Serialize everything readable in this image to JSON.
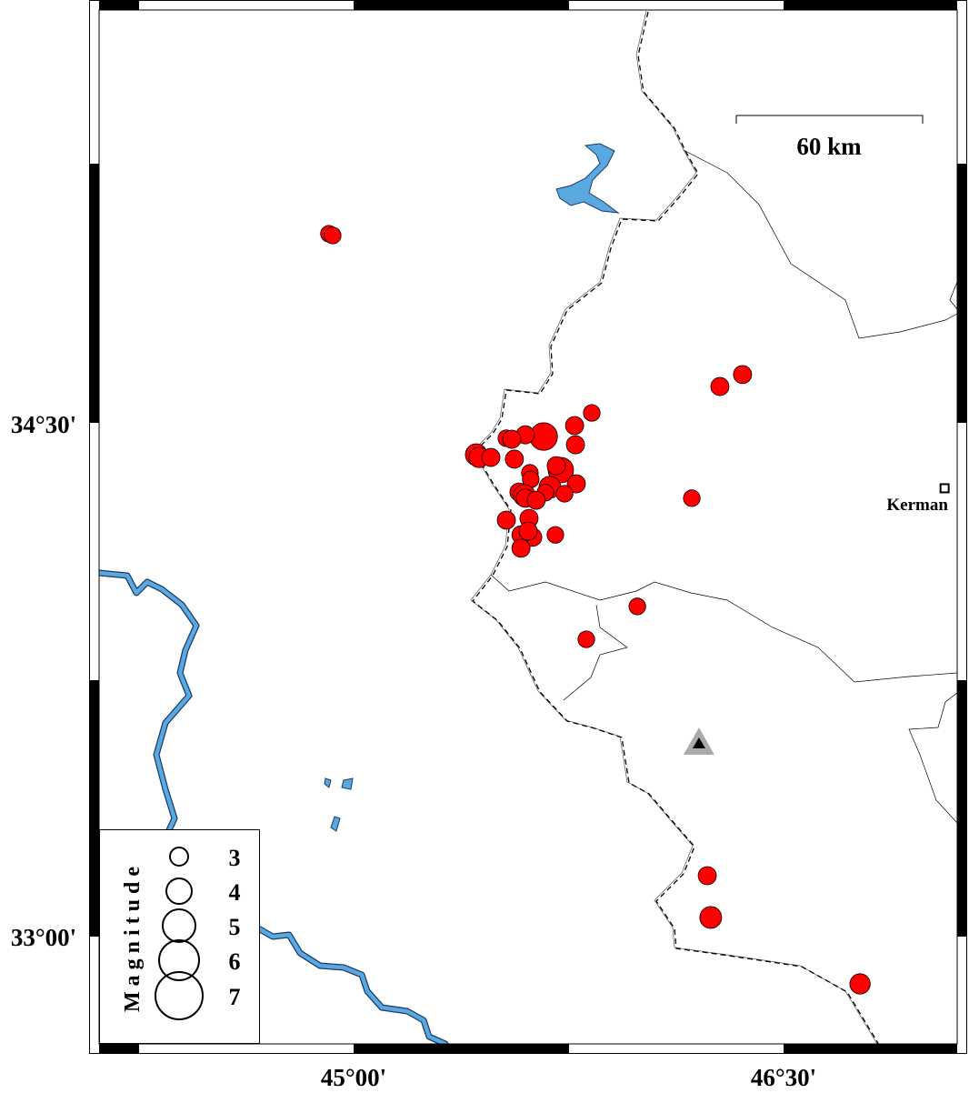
{
  "map": {
    "projection_extent": {
      "lon": [
        44.24,
        47.24
      ],
      "lat": [
        32.78,
        35.8
      ]
    },
    "axes": {
      "x_ticks": [
        {
          "value": 45.0,
          "label": "45°00'"
        },
        {
          "value": 46.5,
          "label": "46°30'"
        }
      ],
      "y_ticks": [
        {
          "value": 34.5,
          "label": "34°30'"
        },
        {
          "value": 33.0,
          "label": "33°00'"
        }
      ]
    },
    "scale_bar": {
      "label": "60 km"
    },
    "city": {
      "name": "Kerman",
      "lon": 47.062,
      "lat": 34.309,
      "icon": "square-city-icon"
    },
    "station": {
      "lon": 46.205,
      "lat": 33.563,
      "icon": "triangle-station-icon"
    },
    "colors": {
      "event": "#ff0000",
      "water": "#5aa8e0",
      "border": "#000000",
      "station_halo": "#aaaaaa"
    },
    "legend": {
      "title": "Magnitude",
      "items": [
        {
          "mag": 3,
          "label": "3"
        },
        {
          "mag": 4,
          "label": "4"
        },
        {
          "mag": 5,
          "label": "5"
        },
        {
          "mag": 6,
          "label": "6"
        },
        {
          "mag": 7,
          "label": "7"
        }
      ]
    },
    "events": [
      {
        "lon": 44.914,
        "lat": 35.052,
        "mag": 2.8
      },
      {
        "lon": 44.927,
        "lat": 35.047,
        "mag": 2.8
      },
      {
        "lon": 46.357,
        "lat": 34.641,
        "mag": 3.0
      },
      {
        "lon": 46.278,
        "lat": 34.606,
        "mag": 3.0
      },
      {
        "lon": 45.831,
        "lat": 34.529,
        "mag": 2.8
      },
      {
        "lon": 45.771,
        "lat": 34.492,
        "mag": 3.0
      },
      {
        "lon": 45.774,
        "lat": 34.436,
        "mag": 3.0
      },
      {
        "lon": 45.663,
        "lat": 34.46,
        "mag": 4.3
      },
      {
        "lon": 45.599,
        "lat": 34.465,
        "mag": 3.0
      },
      {
        "lon": 45.533,
        "lat": 34.455,
        "mag": 2.8
      },
      {
        "lon": 45.552,
        "lat": 34.452,
        "mag": 3.0
      },
      {
        "lon": 45.428,
        "lat": 34.407,
        "mag": 3.5
      },
      {
        "lon": 45.438,
        "lat": 34.399,
        "mag": 3.3
      },
      {
        "lon": 45.479,
        "lat": 34.399,
        "mag": 3.0
      },
      {
        "lon": 45.561,
        "lat": 34.394,
        "mag": 3.0
      },
      {
        "lon": 45.723,
        "lat": 34.362,
        "mag": 4.0
      },
      {
        "lon": 45.707,
        "lat": 34.375,
        "mag": 3.0
      },
      {
        "lon": 45.615,
        "lat": 34.354,
        "mag": 2.8
      },
      {
        "lon": 45.618,
        "lat": 34.335,
        "mag": 2.8
      },
      {
        "lon": 45.777,
        "lat": 34.322,
        "mag": 3.0
      },
      {
        "lon": 45.685,
        "lat": 34.312,
        "mag": 3.5
      },
      {
        "lon": 45.736,
        "lat": 34.293,
        "mag": 2.8
      },
      {
        "lon": 45.577,
        "lat": 34.298,
        "mag": 3.0
      },
      {
        "lon": 45.596,
        "lat": 34.288,
        "mag": 3.5
      },
      {
        "lon": 45.599,
        "lat": 34.28,
        "mag": 3.0
      },
      {
        "lon": 45.669,
        "lat": 34.296,
        "mag": 2.8
      },
      {
        "lon": 45.637,
        "lat": 34.274,
        "mag": 3.0
      },
      {
        "lon": 46.18,
        "lat": 34.28,
        "mag": 2.8
      },
      {
        "lon": 45.533,
        "lat": 34.216,
        "mag": 3.0
      },
      {
        "lon": 45.612,
        "lat": 34.221,
        "mag": 3.0
      },
      {
        "lon": 45.704,
        "lat": 34.173,
        "mag": 2.8
      },
      {
        "lon": 45.625,
        "lat": 34.166,
        "mag": 3.0
      },
      {
        "lon": 45.584,
        "lat": 34.173,
        "mag": 3.0
      },
      {
        "lon": 45.609,
        "lat": 34.184,
        "mag": 3.0
      },
      {
        "lon": 45.584,
        "lat": 34.134,
        "mag": 3.0
      },
      {
        "lon": 45.99,
        "lat": 33.964,
        "mag": 2.8
      },
      {
        "lon": 45.812,
        "lat": 33.868,
        "mag": 2.8
      },
      {
        "lon": 46.234,
        "lat": 33.178,
        "mag": 3.0
      },
      {
        "lon": 46.246,
        "lat": 33.056,
        "mag": 3.5
      },
      {
        "lon": 46.767,
        "lat": 32.862,
        "mag": 3.3
      }
    ]
  }
}
